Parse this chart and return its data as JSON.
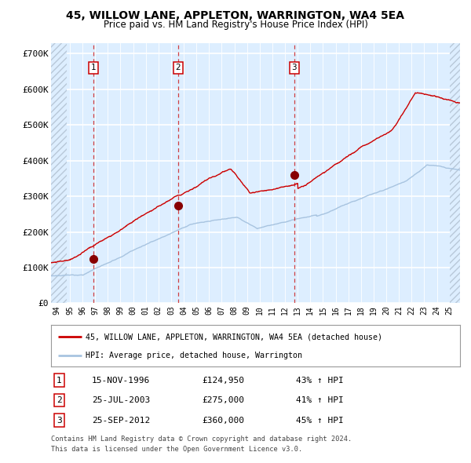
{
  "title": "45, WILLOW LANE, APPLETON, WARRINGTON, WA4 5EA",
  "subtitle": "Price paid vs. HM Land Registry's House Price Index (HPI)",
  "legend_line1": "45, WILLOW LANE, APPLETON, WARRINGTON, WA4 5EA (detached house)",
  "legend_line2": "HPI: Average price, detached house, Warrington",
  "footer_line1": "Contains HM Land Registry data © Crown copyright and database right 2024.",
  "footer_line2": "This data is licensed under the Open Government Licence v3.0.",
  "sales": [
    {
      "label": "1",
      "date": "15-NOV-1996",
      "price": 124950,
      "pct": "43%",
      "dir": "↑",
      "year_x": 1996.88
    },
    {
      "label": "2",
      "date": "25-JUL-2003",
      "price": 275000,
      "pct": "41%",
      "dir": "↑",
      "year_x": 2003.56
    },
    {
      "label": "3",
      "date": "25-SEP-2012",
      "price": 360000,
      "pct": "45%",
      "dir": "↑",
      "year_x": 2012.73
    }
  ],
  "hpi_color": "#a8c4e0",
  "price_color": "#cc0000",
  "sale_dot_color": "#880000",
  "bg_color": "#ddeeff",
  "ylim": [
    0,
    730000
  ],
  "xlim_start": 1993.5,
  "xlim_end": 2025.8,
  "hatch_end": 1994.75,
  "hatch_start_right": 2025.0,
  "yticks": [
    0,
    100000,
    200000,
    300000,
    400000,
    500000,
    600000,
    700000
  ],
  "ytick_labels": [
    "£0",
    "£100K",
    "£200K",
    "£300K",
    "£400K",
    "£500K",
    "£600K",
    "£700K"
  ],
  "xticks": [
    1994,
    1995,
    1996,
    1997,
    1998,
    1999,
    2000,
    2001,
    2002,
    2003,
    2004,
    2005,
    2006,
    2007,
    2008,
    2009,
    2010,
    2011,
    2012,
    2013,
    2014,
    2015,
    2016,
    2017,
    2018,
    2019,
    2020,
    2021,
    2022,
    2023,
    2024,
    2025
  ]
}
